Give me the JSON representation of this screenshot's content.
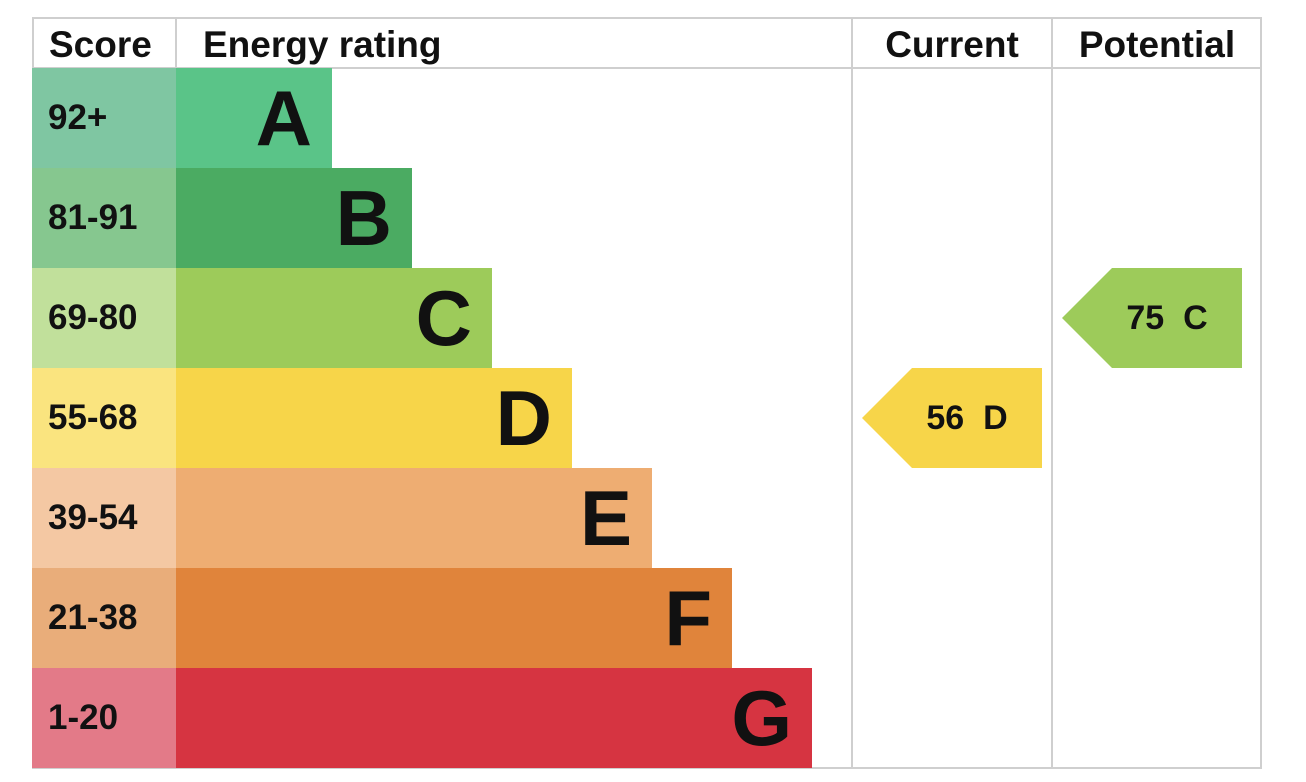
{
  "headers": {
    "score": "Score",
    "energy_rating": "Energy rating",
    "current": "Current",
    "potential": "Potential"
  },
  "chart_data": {
    "type": "bar",
    "bands": [
      {
        "score": "92+",
        "letter": "A",
        "color": "#5ac488",
        "score_color": "#7fc6a2"
      },
      {
        "score": "81-91",
        "letter": "B",
        "color": "#4bab62",
        "score_color": "#86c78f"
      },
      {
        "score": "69-80",
        "letter": "C",
        "color": "#9dcb5a",
        "score_color": "#c1e09b"
      },
      {
        "score": "55-68",
        "letter": "D",
        "color": "#f7d549",
        "score_color": "#fae47f"
      },
      {
        "score": "39-54",
        "letter": "E",
        "color": "#eead72",
        "score_color": "#f4c8a3"
      },
      {
        "score": "21-38",
        "letter": "F",
        "color": "#e0843b",
        "score_color": "#e9ad7a"
      },
      {
        "score": "1-20",
        "letter": "G",
        "color": "#d63441",
        "score_color": "#e37a88"
      }
    ],
    "current": {
      "value": 56,
      "band": "D",
      "label": "56  D",
      "color": "#f7d549"
    },
    "potential": {
      "value": 75,
      "band": "C",
      "label": "75  C",
      "color": "#9dcb5a"
    }
  }
}
